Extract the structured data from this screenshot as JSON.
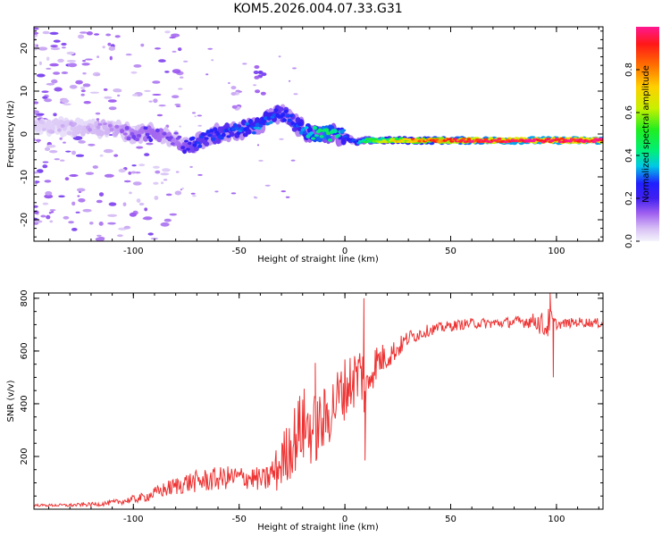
{
  "title": "KOM5.2026.004.07.33.G31",
  "chart_data": [
    {
      "type": "heatmap",
      "name": "spectrogram",
      "xlabel": "Height of straight line (km)",
      "ylabel": "Frequency (Hz)",
      "xlim": [
        -147,
        122
      ],
      "ylim": [
        -25,
        25
      ],
      "xticks": [
        -100,
        -50,
        0,
        50,
        100
      ],
      "yticks": [
        -20,
        -10,
        0,
        10,
        20
      ],
      "ridge": {
        "x": [
          -147,
          -110,
          -100,
          -90,
          -80,
          -75,
          -70,
          -60,
          -50,
          -40,
          -35,
          -30,
          -25,
          -20,
          -15,
          -10,
          -5,
          0,
          5,
          10,
          20,
          30,
          50,
          80,
          100,
          122
        ],
        "freq": [
          2,
          1,
          0,
          0,
          -1,
          -3,
          -2,
          0,
          1,
          2,
          4,
          5,
          3,
          1,
          0,
          0,
          0,
          -0.5,
          -2,
          -1.5,
          -1.5,
          -1.5,
          -1.5,
          -1.5,
          -1.5,
          -1.5
        ],
        "amplitude": [
          0.05,
          0.1,
          0.15,
          0.18,
          0.15,
          0.2,
          0.25,
          0.25,
          0.28,
          0.3,
          0.3,
          0.25,
          0.25,
          0.3,
          0.4,
          0.45,
          0.4,
          0.3,
          0.25,
          0.45,
          0.6,
          0.75,
          0.85,
          0.95,
          0.95,
          0.95
        ]
      },
      "annotations": [
        {
          "x": -40,
          "freq": 13,
          "amplitude": 0.1
        },
        {
          "x": -52,
          "freq": 8,
          "amplitude": 0.05
        }
      ],
      "colorbar": {
        "label": "Normalized spectral amplitude",
        "range": [
          0,
          1
        ],
        "ticks": [
          "0.0",
          "0.2",
          "0.4",
          "0.6",
          "0.8"
        ]
      }
    },
    {
      "type": "line",
      "name": "snr",
      "xlabel": "Height of straight line (km)",
      "ylabel": "SNR (v/v)",
      "xlim": [
        -147,
        122
      ],
      "ylim": [
        0,
        820
      ],
      "xticks": [
        -100,
        -50,
        0,
        50,
        100
      ],
      "yticks": [
        200,
        400,
        600,
        800
      ],
      "series": [
        {
          "name": "SNR",
          "color": "#ee3333",
          "x": [
            -147,
            -130,
            -115,
            -105,
            -95,
            -85,
            -75,
            -65,
            -55,
            -45,
            -38,
            -32,
            -25,
            -20,
            -15,
            -10,
            -5,
            0,
            5,
            8,
            10,
            12,
            15,
            20,
            25,
            30,
            40,
            50,
            60,
            70,
            80,
            90,
            95,
            97,
            100,
            110,
            122
          ],
          "y": [
            15,
            15,
            20,
            30,
            45,
            75,
            100,
            110,
            120,
            120,
            110,
            150,
            250,
            320,
            300,
            330,
            400,
            460,
            500,
            520,
            420,
            520,
            560,
            580,
            610,
            650,
            680,
            695,
            705,
            705,
            710,
            715,
            690,
            720,
            700,
            710,
            705
          ],
          "noise": [
            4,
            6,
            8,
            12,
            18,
            30,
            40,
            45,
            45,
            45,
            45,
            90,
            130,
            150,
            140,
            130,
            120,
            120,
            120,
            130,
            120,
            90,
            70,
            50,
            40,
            30,
            22,
            20,
            20,
            20,
            20,
            30,
            60,
            50,
            18,
            18,
            18
          ],
          "spikes": [
            {
              "x": 9,
              "y": 800
            },
            {
              "x": 9.5,
              "y": 185
            },
            {
              "x": -14,
              "y": 555
            },
            {
              "x": 97,
              "y": 820
            },
            {
              "x": 98.5,
              "y": 500
            }
          ]
        }
      ]
    }
  ]
}
